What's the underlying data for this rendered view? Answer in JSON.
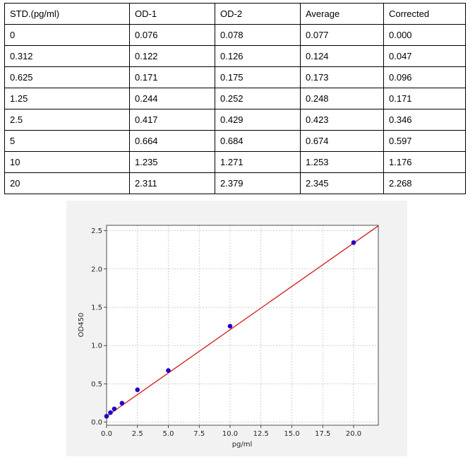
{
  "table": {
    "headers": [
      "STD.(pg/ml)",
      "OD-1",
      "OD-2",
      "Average",
      "Corrected"
    ],
    "rows": [
      [
        "0",
        "0.076",
        "0.078",
        "0.077",
        "0.000"
      ],
      [
        "0.312",
        "0.122",
        "0.126",
        "0.124",
        "0.047"
      ],
      [
        "0.625",
        "0.171",
        "0.175",
        "0.173",
        "0.096"
      ],
      [
        "1.25",
        "0.244",
        "0.252",
        "0.248",
        "0.171"
      ],
      [
        "2.5",
        "0.417",
        "0.429",
        "0.423",
        "0.346"
      ],
      [
        "5",
        "0.664",
        "0.684",
        "0.674",
        "0.597"
      ],
      [
        "10",
        "1.235",
        "1.271",
        "1.253",
        "1.176"
      ],
      [
        "20",
        "2.311",
        "2.379",
        "2.345",
        "2.268"
      ]
    ]
  },
  "chart_data": {
    "type": "scatter",
    "title": "",
    "xlabel": "pg/ml",
    "ylabel": "OD450",
    "xlim": [
      0,
      22
    ],
    "ylim": [
      -0.04,
      2.57
    ],
    "xticks": [
      "0.0",
      "2.5",
      "5.0",
      "7.5",
      "10.0",
      "12.5",
      "15.0",
      "17.5",
      "20.0"
    ],
    "yticks": [
      "0.0",
      "0.5",
      "1.0",
      "1.5",
      "2.0",
      "2.5"
    ],
    "grid": true,
    "series": [
      {
        "x": [
          0,
          0.312,
          0.625,
          1.25,
          2.5,
          5,
          10,
          20
        ],
        "y": [
          0.077,
          0.124,
          0.173,
          0.248,
          0.423,
          0.674,
          1.253,
          2.345
        ]
      }
    ],
    "fit_line": {
      "x": [
        0,
        22
      ],
      "y": [
        0.077,
        2.563
      ]
    },
    "colors": {
      "points": "#1f00cc",
      "line": "#d62728",
      "grid": "#b0b0b0",
      "panel_background": "#f2f2f2",
      "plot_background": "#ffffff"
    }
  }
}
